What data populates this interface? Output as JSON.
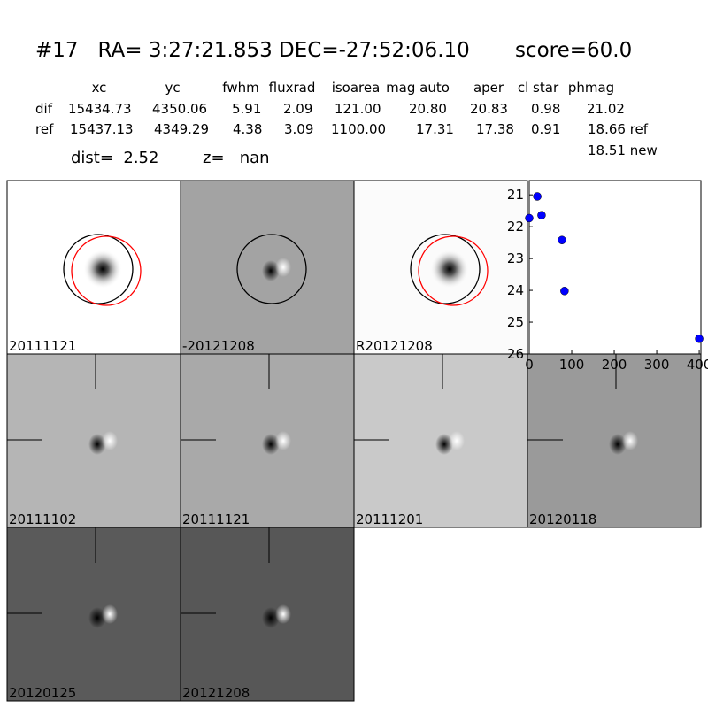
{
  "header": {
    "title": "#17   RA= 3:27:21.853 DEC=-27:52:06.10       score=60.0"
  },
  "table": {
    "columns": [
      "xc",
      "yc",
      "fwhm",
      "fluxrad",
      "isoarea",
      "mag auto",
      "aper",
      "cl star",
      "phmag"
    ],
    "rows": [
      [
        "dif",
        "15434.73",
        "4350.06",
        "5.91",
        "2.09",
        "121.00",
        "20.80",
        "20.83",
        "0.98",
        "21.02"
      ],
      [
        "ref",
        "15437.13",
        "4349.29",
        "4.38",
        "3.09",
        "1100.00",
        "17.31",
        "17.38",
        "0.91",
        "18.66 ref"
      ]
    ],
    "extra": "18.51 new"
  },
  "dist": {
    "dist": "dist=  2.52",
    "z": "z=   nan"
  },
  "panels": [
    "20111121",
    "-20121208",
    "R20121208",
    "20111102",
    "20111121",
    "20111201",
    "20120118",
    "20120125",
    "20121208"
  ],
  "chart_data": {
    "type": "scatter",
    "color": "#0000ff",
    "x": [
      0,
      19,
      29,
      77,
      83,
      400
    ],
    "values": [
      21.73,
      21.05,
      21.64,
      22.42,
      24.02,
      25.52
    ],
    "xlim": [
      0,
      404
    ],
    "ylim": [
      26,
      20.55
    ],
    "xticks": [
      0,
      100,
      200,
      300,
      400
    ],
    "yticks": [
      21,
      22,
      23,
      24,
      25,
      26
    ]
  }
}
